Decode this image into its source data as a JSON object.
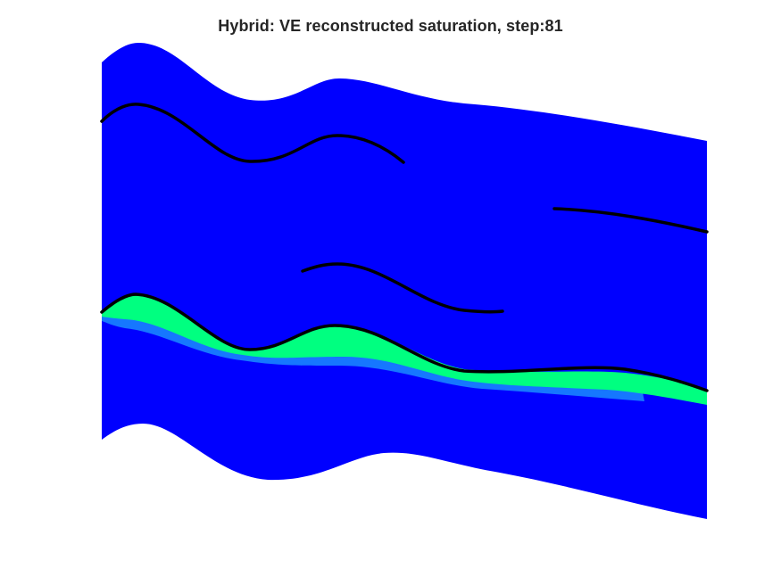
{
  "figure": {
    "title": "Hybrid: VE reconstructed saturation, step:81"
  },
  "colors": {
    "background": "#ffffff",
    "domain_fill": "#0000ff",
    "plume_fill": "#00ff80",
    "plume_fringe": "#1a8cff",
    "fault_lines": "#000000"
  }
}
